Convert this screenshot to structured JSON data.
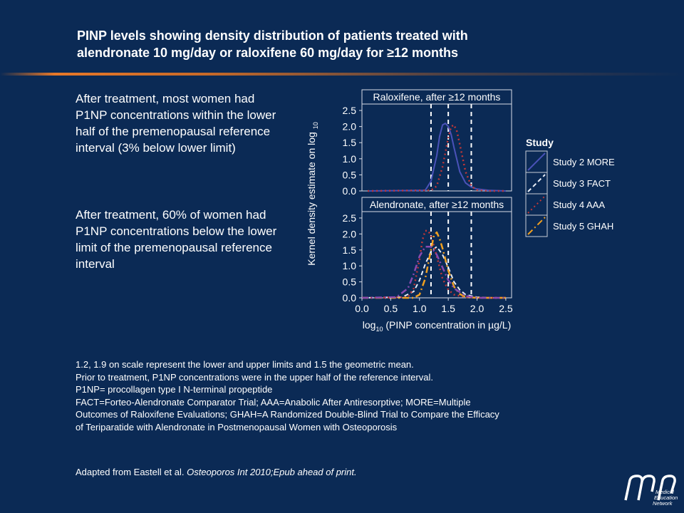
{
  "slide": {
    "title_line1": "PINP levels showing density distribution of patients treated with",
    "title_line2": "alendronate 10 mg/day or raloxifene 60 mg/day for ≥12 months",
    "bullet1": "After treatment, most women had P1NP concentrations within the lower half of the premenopausal reference interval (3% below lower limit)",
    "bullet2": "After treatment, 60% of women had P1NP concentrations below the lower limit of the premenopausal reference interval",
    "footnotes": [
      "1.2, 1.9 on scale represent the lower and upper limits  and 1.5 the geometric mean.",
      "Prior to treatment, P1NP concentrations were in the upper half of the reference interval.",
      "P1NP= procollagen type I N-terminal propeptide",
      "FACT=Forteo-Alendronate Comparator Trial; AAA=Anabolic After  Antiresorptive; MORE=Multiple",
      "Outcomes of Raloxifene Evaluations; GHAH=A Randomized Double-Blind Trial to Compare the Efficacy",
      "of Teriparatide with Alendronate in Postmenopausal Women with Osteoporosis"
    ],
    "source_prefix": "Adapted from Eastell et al. ",
    "source_journal": "Osteoporos Int 2010;Epub ahead of print.",
    "logo_text": [
      "Medical",
      "Education",
      "Network"
    ]
  },
  "chart_data": {
    "type": "line",
    "ylabel": "Kernel density estimate on log",
    "ylabel_sub": "10",
    "xlabel_prefix": "log",
    "xlabel_sub": "10",
    "xlabel_rest": " (PINP concentration in µg/L)",
    "xlim": [
      0,
      2.6
    ],
    "ylim": [
      0,
      2.7
    ],
    "xticks": [
      "0.0",
      "0.5",
      "1.0",
      "1.5",
      "2.0",
      "2.5"
    ],
    "yticks": [
      "0.0",
      "0.5",
      "1.0",
      "1.5",
      "2.0",
      "2.5"
    ],
    "reference_lines": [
      1.2,
      1.5,
      1.9
    ],
    "legend_title": "Study",
    "legend_position": "right",
    "colors": {
      "Study 2 MORE": "#4a52b8",
      "Study 3 FACT": "#e8edf6",
      "Study 4 AAA": "#c03838",
      "Study 5 GHAH": "#f0a020",
      "Study 5 GHAH purple": "#8a4ab0"
    },
    "panels": [
      {
        "title": "Raloxifene, after ≥12 months",
        "series": [
          {
            "name": "Study 2 MORE",
            "x": [
              0.1,
              1.1,
              1.2,
              1.3,
              1.35,
              1.4,
              1.45,
              1.5,
              1.55,
              1.6,
              1.7,
              1.8,
              1.9,
              2.0,
              2.2,
              2.5
            ],
            "values": [
              0.0,
              0.02,
              0.3,
              1.1,
              1.7,
              2.05,
              2.1,
              2.0,
              1.75,
              1.35,
              0.6,
              0.25,
              0.12,
              0.06,
              0.02,
              0.0
            ]
          },
          {
            "name": "Study 4 AAA",
            "x": [
              0.1,
              1.2,
              1.3,
              1.4,
              1.5,
              1.55,
              1.6,
              1.65,
              1.7,
              1.8,
              1.9,
              2.0,
              2.2,
              2.5
            ],
            "values": [
              0.0,
              0.02,
              0.15,
              0.75,
              1.65,
              2.0,
              2.05,
              1.85,
              1.45,
              0.6,
              0.15,
              0.03,
              0.0,
              0.0
            ]
          }
        ]
      },
      {
        "title": "Alendronate, after ≥12 months",
        "series": [
          {
            "name": "Study 3 FACT",
            "x": [
              0.0,
              0.7,
              0.9,
              1.0,
              1.1,
              1.2,
              1.3,
              1.4,
              1.5,
              1.6,
              1.7,
              1.8,
              2.0,
              2.2,
              2.5
            ],
            "values": [
              0.0,
              0.02,
              0.2,
              0.55,
              1.05,
              1.45,
              1.6,
              1.35,
              0.95,
              0.5,
              0.25,
              0.1,
              0.02,
              0.0,
              0.0
            ]
          },
          {
            "name": "Study 4 AAA",
            "x": [
              0.0,
              0.8,
              0.9,
              1.0,
              1.05,
              1.1,
              1.15,
              1.2,
              1.3,
              1.4,
              1.5,
              1.6,
              1.8,
              2.0,
              2.5
            ],
            "values": [
              0.0,
              0.02,
              0.3,
              1.2,
              1.8,
              2.1,
              2.1,
              1.95,
              1.3,
              0.6,
              0.25,
              0.1,
              0.02,
              0.0,
              0.0
            ]
          },
          {
            "name": "Study 5 GHAH",
            "x": [
              0.0,
              0.9,
              1.0,
              1.1,
              1.2,
              1.25,
              1.3,
              1.35,
              1.4,
              1.5,
              1.6,
              1.7,
              1.8,
              2.0,
              2.5
            ],
            "values": [
              0.0,
              0.0,
              0.1,
              0.6,
              1.5,
              1.95,
              2.05,
              1.85,
              1.55,
              0.85,
              0.35,
              0.12,
              0.03,
              0.0,
              0.0
            ]
          },
          {
            "name": "Study 5 GHAH purple",
            "x": [
              0.0,
              0.6,
              0.8,
              0.9,
              1.0,
              1.1,
              1.2,
              1.3,
              1.4,
              1.5,
              1.6,
              1.8,
              2.0,
              2.5
            ],
            "values": [
              0.0,
              0.02,
              0.3,
              0.75,
              1.3,
              1.6,
              1.6,
              1.35,
              0.95,
              0.55,
              0.3,
              0.06,
              0.0,
              0.0
            ]
          }
        ]
      }
    ],
    "legend": [
      {
        "label": "Study 2 MORE",
        "style": "solid",
        "color": "#4a52b8"
      },
      {
        "label": "Study 3 FACT",
        "style": "dashed",
        "color": "#e8edf6"
      },
      {
        "label": "Study 4 AAA",
        "style": "dotted",
        "color": "#c03838"
      },
      {
        "label": "Study 5 GHAH",
        "style": "dashdot",
        "color": "#f0a020"
      }
    ]
  }
}
